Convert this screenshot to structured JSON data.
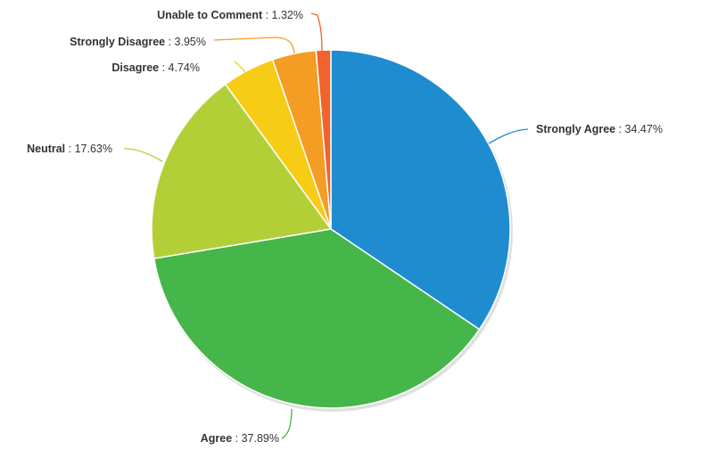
{
  "chart_data": {
    "type": "pie",
    "title": "",
    "slices": [
      {
        "label": "Strongly Agree",
        "value": 34.47,
        "value_text": "34.47%",
        "color": "#1f8ccf"
      },
      {
        "label": "Agree",
        "value": 37.89,
        "value_text": "37.89%",
        "color": "#45b649"
      },
      {
        "label": "Neutral",
        "value": 17.63,
        "value_text": "17.63%",
        "color": "#b3cf38"
      },
      {
        "label": "Disagree",
        "value": 4.74,
        "value_text": "4.74%",
        "color": "#f6cc16"
      },
      {
        "label": "Strongly Disagree",
        "value": 3.95,
        "value_text": "3.95%",
        "color": "#f59c24"
      },
      {
        "label": "Unable to Comment",
        "value": 1.32,
        "value_text": "1.32%",
        "color": "#f0632c"
      }
    ],
    "start_angle": "12 o'clock",
    "direction": "clockwise",
    "label_separator": " : "
  }
}
